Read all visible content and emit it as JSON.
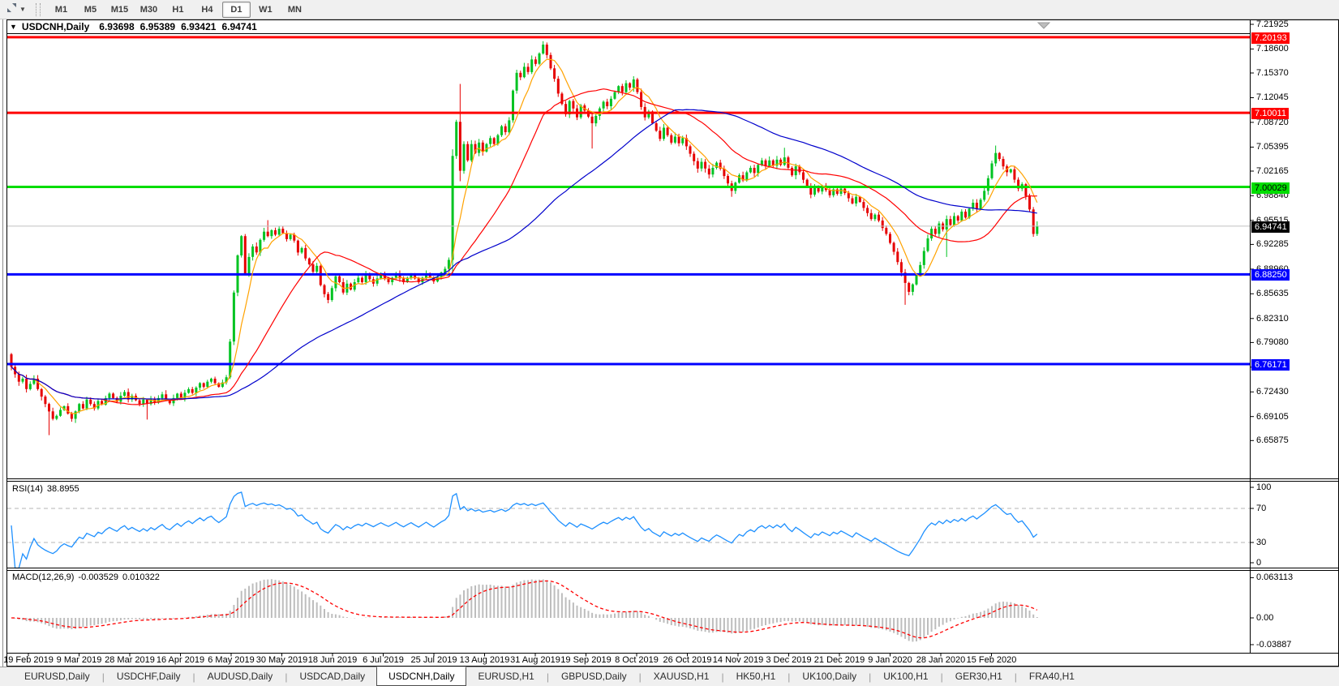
{
  "window": {
    "collapse_icon": "▼",
    "title_symbol": "USDCNH,Daily",
    "open": "6.93698",
    "high": "6.95389",
    "low": "6.93421",
    "close": "6.94741"
  },
  "toolbar": {
    "timeframes": [
      "M1",
      "M5",
      "M15",
      "M30",
      "H1",
      "H4",
      "D1",
      "W1",
      "MN"
    ],
    "active": "D1"
  },
  "indicators": {
    "rsi": {
      "label": "RSI(14)",
      "value": "38.8955",
      "axis_labels": [
        "100",
        "70",
        "30",
        "0"
      ],
      "axis_values": [
        100,
        70,
        30,
        0
      ],
      "dashed_levels": [
        70,
        30
      ],
      "line_color": "#1e90ff"
    },
    "macd": {
      "label": "MACD(12,26,9)",
      "main_value": "-0.003529",
      "signal_value": "0.010322",
      "axis_labels": [
        {
          "text": "0.063113",
          "v": 0.063113
        },
        {
          "text": "0.00",
          "v": 0.0
        },
        {
          "text": "-0.03887",
          "v": -0.03887
        }
      ],
      "histogram_color": "#bdbdbd",
      "signal_color": "#ff0000"
    }
  },
  "tabs": {
    "active_index": 4,
    "items": [
      "EURUSD,Daily",
      "USDCHF,Daily",
      "AUDUSD,Daily",
      "USDCAD,Daily",
      "USDCNH,Daily",
      "EURUSD,H1",
      "GBPUSD,Daily",
      "XAUUSD,H1",
      "HK50,H1",
      "UK100,Daily",
      "UK100,H1",
      "GER30,H1",
      "FRA40,H1"
    ]
  },
  "chart_data": {
    "type": "candlestick",
    "symbol": "USDCNH",
    "timeframe": "Daily",
    "ylim": [
      6.65875,
      7.21925
    ],
    "current_bar": {
      "open": 6.93698,
      "high": 6.95389,
      "low": 6.93421,
      "close": 6.94741
    },
    "bull_color": "#00c322",
    "bear_color": "#e60000",
    "price_axis_ticks": [
      "7.21925",
      "7.18600",
      "7.15370",
      "7.12045",
      "7.08720",
      "7.05395",
      "7.02165",
      "6.98840",
      "6.95515",
      "6.92285",
      "6.88960",
      "6.85635",
      "6.82310",
      "6.79080",
      "6.75755",
      "6.72430",
      "6.69105",
      "6.65875"
    ],
    "time_labels": [
      "19 Feb 2019",
      "9 Mar 2019",
      "28 Mar 2019",
      "16 Apr 2019",
      "6 May 2019",
      "30 May 2019",
      "18 Jun 2019",
      "6 Jul 2019",
      "25 Jul 2019",
      "13 Aug 2019",
      "31 Aug 2019",
      "19 Sep 2019",
      "8 Oct 2019",
      "26 Oct 2019",
      "14 Nov 2019",
      "3 Dec 2019",
      "21 Dec 2019",
      "9 Jan 2020",
      "28 Jan 2020",
      "15 Feb 2020"
    ],
    "levels": [
      {
        "price": 7.20193,
        "line_color": "#ff0000",
        "line_width": 3,
        "badge_bg": "#ff0000",
        "badge_fg": "#ffffff"
      },
      {
        "price": 7.10011,
        "line_color": "#ff0000",
        "line_width": 3,
        "badge_bg": "#ff0000",
        "badge_fg": "#ffffff"
      },
      {
        "price": 7.00029,
        "line_color": "#00dd00",
        "line_width": 3,
        "badge_bg": "#00dd00",
        "badge_fg": "#000000"
      },
      {
        "price": 6.94741,
        "line_color": "#c0c0c0",
        "line_width": 1,
        "badge_bg": "#000000",
        "badge_fg": "#ffffff"
      },
      {
        "price": 6.8825,
        "line_color": "#0000ff",
        "line_width": 3,
        "badge_bg": "#0000ff",
        "badge_fg": "#ffffff"
      },
      {
        "price": 6.76171,
        "line_color": "#0000ff",
        "line_width": 3,
        "badge_bg": "#0000ff",
        "badge_fg": "#ffffff"
      }
    ],
    "moving_averages": [
      {
        "type": "sma",
        "period": 7,
        "color": "#ffa200"
      },
      {
        "type": "sma",
        "period": 25,
        "color": "#ff0000"
      },
      {
        "type": "sma",
        "period": 60,
        "color": "#0000cc"
      }
    ],
    "first_open": 6.775,
    "closes": [
      6.758,
      6.748,
      6.738,
      6.742,
      6.728,
      6.735,
      6.742,
      6.728,
      6.718,
      6.708,
      6.698,
      6.688,
      6.692,
      6.7,
      6.705,
      6.695,
      6.688,
      6.698,
      6.708,
      6.702,
      6.714,
      6.708,
      6.702,
      6.712,
      6.707,
      6.716,
      6.722,
      6.716,
      6.711,
      6.719,
      6.724,
      6.714,
      6.719,
      6.713,
      6.708,
      6.714,
      6.708,
      6.715,
      6.71,
      6.716,
      6.721,
      6.713,
      6.709,
      6.716,
      6.722,
      6.716,
      6.723,
      6.728,
      6.723,
      6.73,
      6.736,
      6.731,
      6.738,
      6.742,
      6.736,
      6.731,
      6.737,
      6.744,
      6.792,
      6.858,
      6.908,
      6.934,
      6.884,
      6.906,
      6.92,
      6.912,
      6.929,
      6.94,
      6.934,
      6.942,
      6.936,
      6.944,
      6.938,
      6.93,
      6.936,
      6.928,
      6.912,
      6.918,
      6.904,
      6.896,
      6.886,
      6.894,
      6.868,
      6.856,
      6.848,
      6.864,
      6.88,
      6.872,
      6.858,
      6.87,
      6.862,
      6.872,
      6.878,
      6.872,
      6.882,
      6.876,
      6.87,
      6.877,
      6.883,
      6.877,
      6.872,
      6.878,
      6.884,
      6.877,
      6.872,
      6.878,
      6.883,
      6.877,
      6.872,
      6.878,
      6.884,
      6.878,
      6.873,
      6.879,
      6.885,
      6.89,
      6.902,
      7.042,
      7.088,
      7.022,
      7.058,
      7.036,
      7.058,
      7.046,
      7.06,
      7.048,
      7.058,
      7.066,
      7.058,
      7.07,
      7.082,
      7.074,
      7.09,
      7.13,
      7.154,
      7.148,
      7.162,
      7.155,
      7.172,
      7.166,
      7.18,
      7.192,
      7.178,
      7.16,
      7.146,
      7.126,
      7.112,
      7.098,
      7.116,
      7.106,
      7.094,
      7.11,
      7.103,
      7.095,
      7.086,
      7.096,
      7.106,
      7.115,
      7.109,
      7.119,
      7.128,
      7.136,
      7.128,
      7.14,
      7.134,
      7.145,
      7.128,
      7.108,
      7.094,
      7.102,
      7.086,
      7.076,
      7.065,
      7.08,
      7.07,
      7.06,
      7.068,
      7.059,
      7.066,
      7.055,
      7.045,
      7.035,
      7.025,
      7.034,
      7.025,
      7.017,
      7.026,
      7.033,
      7.025,
      7.015,
      7.005,
      6.995,
      7.006,
      7.016,
      7.009,
      7.02,
      7.026,
      7.019,
      7.03,
      7.036,
      7.028,
      7.036,
      7.029,
      7.037,
      7.03,
      7.04,
      7.026,
      7.016,
      7.028,
      7.02,
      7.01,
      7.0,
      6.99,
      7.0,
      6.994,
      7.002,
      6.996,
      6.989,
      6.997,
      6.991,
      6.998,
      6.992,
      6.985,
      6.978,
      6.987,
      6.98,
      6.972,
      6.965,
      6.957,
      6.963,
      6.955,
      6.945,
      6.937,
      6.925,
      6.913,
      6.899,
      6.885,
      6.871,
      6.859,
      6.869,
      6.881,
      6.895,
      6.914,
      6.931,
      6.944,
      6.937,
      6.951,
      6.943,
      6.957,
      6.949,
      6.961,
      6.955,
      6.967,
      6.959,
      6.971,
      6.979,
      6.971,
      6.983,
      6.995,
      7.012,
      7.032,
      7.046,
      7.038,
      7.028,
      7.02,
      7.024,
      7.01,
      6.998,
      7.004,
      6.988,
      6.97,
      6.937,
      6.94741
    ],
    "wick_overrides": {
      "10": {
        "low": 6.666
      },
      "36": {
        "low": 6.687
      },
      "68": {
        "high": 6.9555
      },
      "117": {
        "low": 6.884,
        "high": 7.051
      },
      "119": {
        "high": 7.139,
        "low": 7.008
      },
      "141": {
        "high": 7.1965
      },
      "154": {
        "low": 7.052
      },
      "191": {
        "low": 6.987
      },
      "205": {
        "high": 7.053
      },
      "237": {
        "low": 6.8415
      },
      "248": {
        "low": 6.906
      },
      "261": {
        "high": 7.056
      },
      "272": {
        "open": 6.93698,
        "high": 6.95389,
        "low": 6.93421
      }
    }
  }
}
